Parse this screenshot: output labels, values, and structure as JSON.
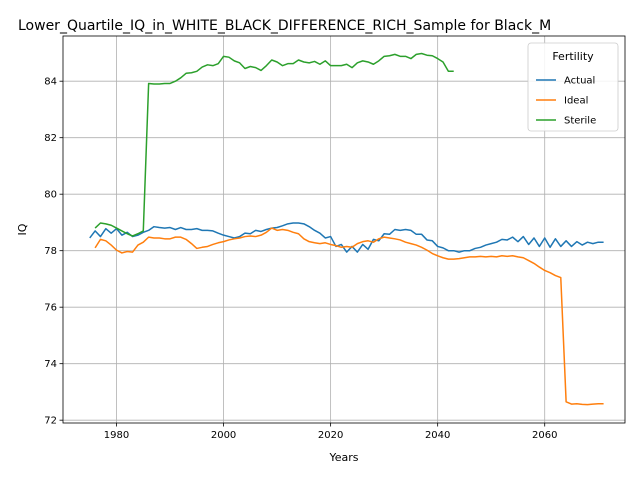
{
  "chart_data": {
    "type": "line",
    "title": "Lower_Quartile_IQ_in_WHITE_BLACK_DIFFERENCE_RICH_Sample for Black_M",
    "xlabel": "Years",
    "ylabel": "IQ",
    "xlim": [
      1970,
      2075
    ],
    "ylim": [
      71.9,
      85.6
    ],
    "xticks": [
      1980,
      2000,
      2020,
      2040,
      2060
    ],
    "yticks": [
      72,
      74,
      76,
      78,
      80,
      82,
      84
    ],
    "grid": true,
    "legend": {
      "title": "Fertility",
      "placement": "top-right"
    },
    "series": [
      {
        "name": "Actual",
        "color": "#1f77b4",
        "points": [
          [
            1975,
            78.45
          ],
          [
            1976,
            78.7
          ],
          [
            1977,
            78.5
          ],
          [
            1978,
            78.78
          ],
          [
            1979,
            78.62
          ],
          [
            1980,
            78.78
          ],
          [
            1981,
            78.55
          ],
          [
            1982,
            78.65
          ],
          [
            1983,
            78.5
          ],
          [
            1984,
            78.55
          ],
          [
            1985,
            78.65
          ],
          [
            1986,
            78.72
          ],
          [
            1987,
            78.85
          ],
          [
            1988,
            78.82
          ],
          [
            1989,
            78.8
          ],
          [
            1990,
            78.82
          ],
          [
            1991,
            78.75
          ],
          [
            1992,
            78.82
          ],
          [
            1993,
            78.75
          ],
          [
            1994,
            78.75
          ],
          [
            1995,
            78.78
          ],
          [
            1996,
            78.72
          ],
          [
            1997,
            78.72
          ],
          [
            1998,
            78.7
          ],
          [
            1999,
            78.62
          ],
          [
            2000,
            78.55
          ],
          [
            2001,
            78.5
          ],
          [
            2002,
            78.45
          ],
          [
            2003,
            78.5
          ],
          [
            2004,
            78.62
          ],
          [
            2005,
            78.6
          ],
          [
            2006,
            78.72
          ],
          [
            2007,
            78.68
          ],
          [
            2008,
            78.75
          ],
          [
            2009,
            78.8
          ],
          [
            2010,
            78.82
          ],
          [
            2011,
            78.88
          ],
          [
            2012,
            78.95
          ],
          [
            2013,
            78.98
          ],
          [
            2014,
            78.98
          ],
          [
            2015,
            78.95
          ],
          [
            2016,
            78.85
          ],
          [
            2017,
            78.72
          ],
          [
            2018,
            78.62
          ],
          [
            2019,
            78.45
          ],
          [
            2020,
            78.5
          ],
          [
            2021,
            78.15
          ],
          [
            2022,
            78.22
          ],
          [
            2023,
            77.95
          ],
          [
            2024,
            78.15
          ],
          [
            2025,
            77.95
          ],
          [
            2026,
            78.22
          ],
          [
            2027,
            78.05
          ],
          [
            2028,
            78.4
          ],
          [
            2029,
            78.35
          ],
          [
            2030,
            78.6
          ],
          [
            2031,
            78.58
          ],
          [
            2032,
            78.75
          ],
          [
            2033,
            78.72
          ],
          [
            2034,
            78.75
          ],
          [
            2035,
            78.72
          ],
          [
            2036,
            78.58
          ],
          [
            2037,
            78.58
          ],
          [
            2038,
            78.38
          ],
          [
            2039,
            78.35
          ],
          [
            2040,
            78.15
          ],
          [
            2041,
            78.1
          ],
          [
            2042,
            78.0
          ],
          [
            2043,
            78.0
          ],
          [
            2044,
            77.95
          ],
          [
            2045,
            78.0
          ],
          [
            2046,
            78.0
          ],
          [
            2047,
            78.08
          ],
          [
            2048,
            78.12
          ],
          [
            2049,
            78.2
          ],
          [
            2050,
            78.25
          ],
          [
            2051,
            78.3
          ],
          [
            2052,
            78.4
          ],
          [
            2053,
            78.38
          ],
          [
            2054,
            78.48
          ],
          [
            2055,
            78.32
          ],
          [
            2056,
            78.5
          ],
          [
            2057,
            78.22
          ],
          [
            2058,
            78.45
          ],
          [
            2059,
            78.15
          ],
          [
            2060,
            78.45
          ],
          [
            2061,
            78.12
          ],
          [
            2062,
            78.42
          ],
          [
            2063,
            78.15
          ],
          [
            2064,
            78.35
          ],
          [
            2065,
            78.15
          ],
          [
            2066,
            78.32
          ],
          [
            2067,
            78.2
          ],
          [
            2068,
            78.3
          ],
          [
            2069,
            78.25
          ],
          [
            2070,
            78.3
          ],
          [
            2071,
            78.3
          ]
        ]
      },
      {
        "name": "Ideal",
        "color": "#ff7f0e",
        "points": [
          [
            1976,
            78.1
          ],
          [
            1977,
            78.4
          ],
          [
            1978,
            78.35
          ],
          [
            1979,
            78.2
          ],
          [
            1980,
            78.02
          ],
          [
            1981,
            77.92
          ],
          [
            1982,
            77.97
          ],
          [
            1983,
            77.95
          ],
          [
            1984,
            78.2
          ],
          [
            1985,
            78.3
          ],
          [
            1986,
            78.48
          ],
          [
            1987,
            78.45
          ],
          [
            1988,
            78.45
          ],
          [
            1989,
            78.42
          ],
          [
            1990,
            78.42
          ],
          [
            1991,
            78.48
          ],
          [
            1992,
            78.48
          ],
          [
            1993,
            78.4
          ],
          [
            1994,
            78.25
          ],
          [
            1995,
            78.08
          ],
          [
            1996,
            78.12
          ],
          [
            1997,
            78.15
          ],
          [
            1998,
            78.22
          ],
          [
            1999,
            78.28
          ],
          [
            2000,
            78.32
          ],
          [
            2001,
            78.38
          ],
          [
            2002,
            78.42
          ],
          [
            2003,
            78.45
          ],
          [
            2004,
            78.5
          ],
          [
            2005,
            78.52
          ],
          [
            2006,
            78.5
          ],
          [
            2007,
            78.55
          ],
          [
            2008,
            78.65
          ],
          [
            2009,
            78.8
          ],
          [
            2010,
            78.72
          ],
          [
            2011,
            78.75
          ],
          [
            2012,
            78.72
          ],
          [
            2013,
            78.65
          ],
          [
            2014,
            78.6
          ],
          [
            2015,
            78.42
          ],
          [
            2016,
            78.32
          ],
          [
            2017,
            78.28
          ],
          [
            2018,
            78.25
          ],
          [
            2019,
            78.28
          ],
          [
            2020,
            78.22
          ],
          [
            2021,
            78.18
          ],
          [
            2022,
            78.12
          ],
          [
            2023,
            78.15
          ],
          [
            2024,
            78.12
          ],
          [
            2025,
            78.25
          ],
          [
            2026,
            78.32
          ],
          [
            2027,
            78.35
          ],
          [
            2028,
            78.3
          ],
          [
            2029,
            78.42
          ],
          [
            2030,
            78.48
          ],
          [
            2031,
            78.45
          ],
          [
            2032,
            78.42
          ],
          [
            2033,
            78.38
          ],
          [
            2034,
            78.3
          ],
          [
            2035,
            78.25
          ],
          [
            2036,
            78.2
          ],
          [
            2037,
            78.12
          ],
          [
            2038,
            78.02
          ],
          [
            2039,
            77.9
          ],
          [
            2040,
            77.82
          ],
          [
            2041,
            77.75
          ],
          [
            2042,
            77.7
          ],
          [
            2043,
            77.7
          ],
          [
            2044,
            77.72
          ],
          [
            2045,
            77.75
          ],
          [
            2046,
            77.78
          ],
          [
            2047,
            77.78
          ],
          [
            2048,
            77.8
          ],
          [
            2049,
            77.78
          ],
          [
            2050,
            77.8
          ],
          [
            2051,
            77.78
          ],
          [
            2052,
            77.82
          ],
          [
            2053,
            77.8
          ],
          [
            2054,
            77.82
          ],
          [
            2055,
            77.78
          ],
          [
            2056,
            77.75
          ],
          [
            2057,
            77.65
          ],
          [
            2058,
            77.55
          ],
          [
            2059,
            77.42
          ],
          [
            2060,
            77.3
          ],
          [
            2061,
            77.22
          ],
          [
            2062,
            77.12
          ],
          [
            2063,
            77.05
          ],
          [
            2064,
            72.65
          ],
          [
            2065,
            72.57
          ],
          [
            2066,
            72.58
          ],
          [
            2067,
            72.56
          ],
          [
            2068,
            72.55
          ],
          [
            2069,
            72.57
          ],
          [
            2070,
            72.58
          ],
          [
            2071,
            72.58
          ]
        ]
      },
      {
        "name": "Sterile",
        "color": "#2ca02c",
        "points": [
          [
            1976,
            78.8
          ],
          [
            1977,
            78.98
          ],
          [
            1978,
            78.95
          ],
          [
            1979,
            78.9
          ],
          [
            1980,
            78.8
          ],
          [
            1981,
            78.7
          ],
          [
            1982,
            78.6
          ],
          [
            1983,
            78.52
          ],
          [
            1984,
            78.6
          ],
          [
            1985,
            78.7
          ],
          [
            1986,
            83.92
          ],
          [
            1987,
            83.9
          ],
          [
            1988,
            83.9
          ],
          [
            1989,
            83.92
          ],
          [
            1990,
            83.92
          ],
          [
            1991,
            84.0
          ],
          [
            1992,
            84.12
          ],
          [
            1993,
            84.28
          ],
          [
            1994,
            84.3
          ],
          [
            1995,
            84.35
          ],
          [
            1996,
            84.5
          ],
          [
            1997,
            84.58
          ],
          [
            1998,
            84.55
          ],
          [
            1999,
            84.62
          ],
          [
            2000,
            84.88
          ],
          [
            2001,
            84.85
          ],
          [
            2002,
            84.72
          ],
          [
            2003,
            84.65
          ],
          [
            2004,
            84.45
          ],
          [
            2005,
            84.52
          ],
          [
            2006,
            84.48
          ],
          [
            2007,
            84.38
          ],
          [
            2008,
            84.55
          ],
          [
            2009,
            84.75
          ],
          [
            2010,
            84.68
          ],
          [
            2011,
            84.55
          ],
          [
            2012,
            84.62
          ],
          [
            2013,
            84.62
          ],
          [
            2014,
            84.75
          ],
          [
            2015,
            84.68
          ],
          [
            2016,
            84.65
          ],
          [
            2017,
            84.7
          ],
          [
            2018,
            84.6
          ],
          [
            2019,
            84.72
          ],
          [
            2020,
            84.55
          ],
          [
            2021,
            84.55
          ],
          [
            2022,
            84.55
          ],
          [
            2023,
            84.6
          ],
          [
            2024,
            84.48
          ],
          [
            2025,
            84.65
          ],
          [
            2026,
            84.72
          ],
          [
            2027,
            84.68
          ],
          [
            2028,
            84.6
          ],
          [
            2029,
            84.72
          ],
          [
            2030,
            84.88
          ],
          [
            2031,
            84.9
          ],
          [
            2032,
            84.95
          ],
          [
            2033,
            84.88
          ],
          [
            2034,
            84.88
          ],
          [
            2035,
            84.8
          ],
          [
            2036,
            84.95
          ],
          [
            2037,
            84.98
          ],
          [
            2038,
            84.92
          ],
          [
            2039,
            84.9
          ],
          [
            2040,
            84.8
          ],
          [
            2041,
            84.68
          ],
          [
            2042,
            84.35
          ],
          [
            2043,
            84.35
          ]
        ]
      }
    ]
  }
}
